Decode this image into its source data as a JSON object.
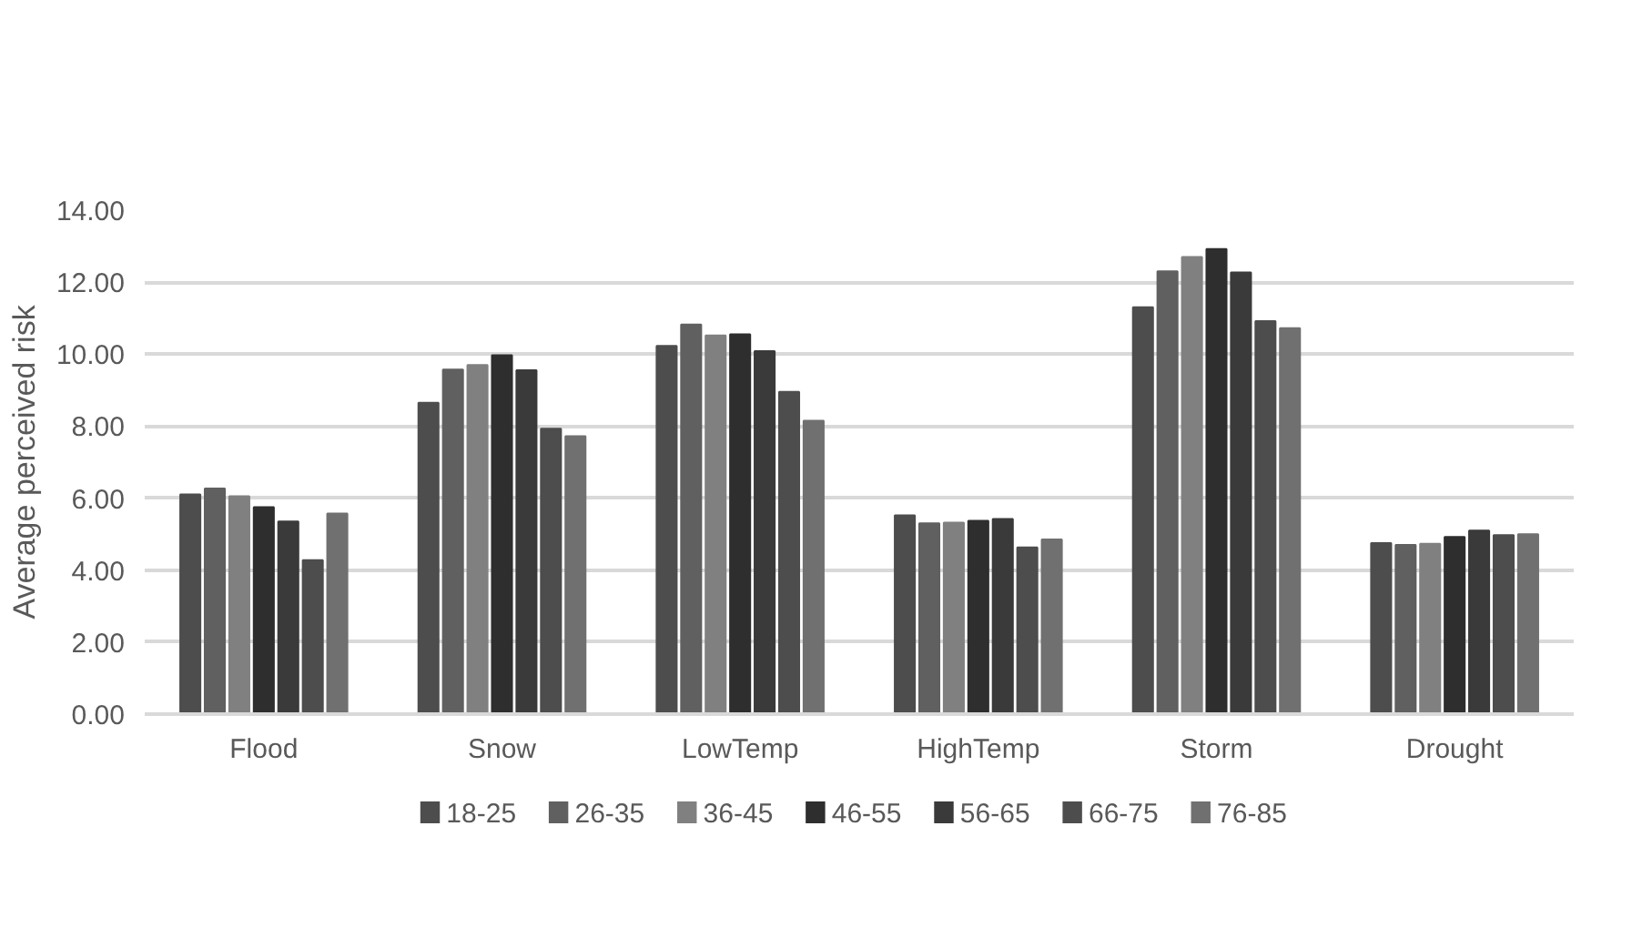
{
  "chart_data": {
    "type": "bar",
    "ylabel": "Average perceived risk",
    "categories": [
      "Flood",
      "Snow",
      "LowTemp",
      "HighTemp",
      "Storm",
      "Drought"
    ],
    "series": [
      {
        "name": "18-25",
        "color": "#4d4d4d",
        "values": [
          6.1,
          8.65,
          10.23,
          5.52,
          11.3,
          4.75
        ]
      },
      {
        "name": "26-35",
        "color": "#606060",
        "values": [
          6.27,
          9.57,
          10.82,
          5.3,
          12.3,
          4.7
        ]
      },
      {
        "name": "36-45",
        "color": "#808080",
        "values": [
          6.05,
          9.7,
          10.52,
          5.32,
          12.7,
          4.73
        ]
      },
      {
        "name": "46-55",
        "color": "#2e2e2e",
        "values": [
          5.75,
          9.97,
          10.55,
          5.37,
          12.92,
          4.92
        ]
      },
      {
        "name": "56-65",
        "color": "#3a3a3a",
        "values": [
          5.35,
          9.55,
          10.08,
          5.42,
          12.27,
          5.1
        ]
      },
      {
        "name": "66-75",
        "color": "#4d4d4d",
        "values": [
          4.28,
          7.93,
          8.95,
          4.63,
          10.92,
          4.97
        ]
      },
      {
        "name": "76-85",
        "color": "#707070",
        "values": [
          5.57,
          7.72,
          8.15,
          4.85,
          10.72,
          5.0
        ]
      }
    ],
    "ylim": [
      0,
      14
    ],
    "yticks": [
      {
        "value": 0,
        "label": "0.00"
      },
      {
        "value": 2,
        "label": "2.00"
      },
      {
        "value": 4,
        "label": "4.00"
      },
      {
        "value": 6,
        "label": "6.00"
      },
      {
        "value": 8,
        "label": "8.00"
      },
      {
        "value": 10,
        "label": "10.00"
      },
      {
        "value": 12,
        "label": "12.00"
      },
      {
        "value": 14,
        "label": "14.00"
      }
    ],
    "grid": "y",
    "legend": "bottom"
  }
}
